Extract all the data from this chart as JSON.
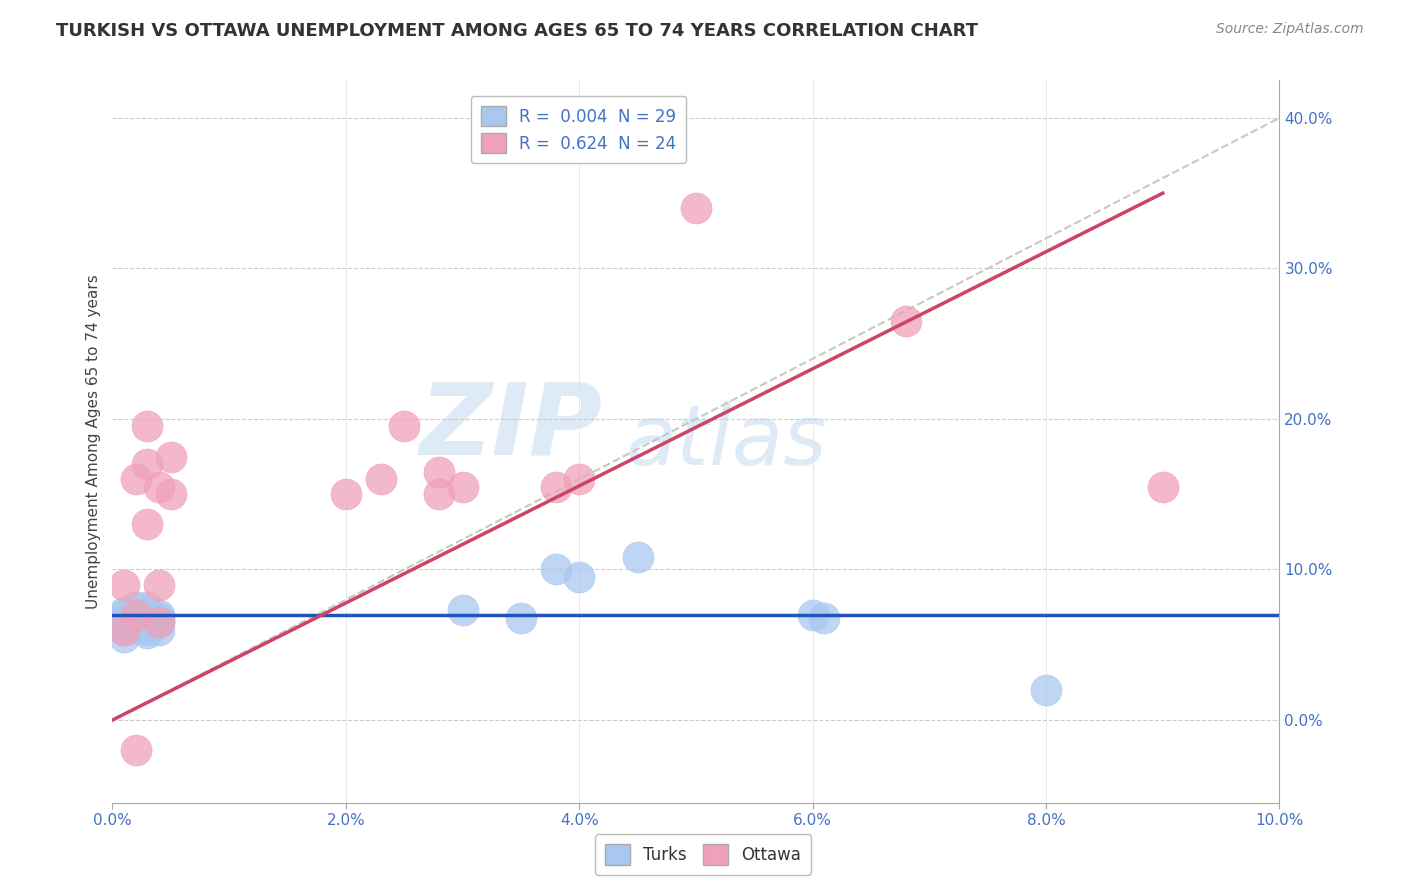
{
  "title": "TURKISH VS OTTAWA UNEMPLOYMENT AMONG AGES 65 TO 74 YEARS CORRELATION CHART",
  "source": "Source: ZipAtlas.com",
  "xlabel": "",
  "ylabel": "Unemployment Among Ages 65 to 74 years",
  "legend_turks": "Turks",
  "legend_ottawa": "Ottawa",
  "turks_R": "0.004",
  "turks_N": "29",
  "ottawa_R": "0.624",
  "ottawa_N": "24",
  "turks_color": "#A8C8F0",
  "ottawa_color": "#F0A0B8",
  "turks_line_color": "#2255BB",
  "ottawa_line_color": "#CC4466",
  "diag_line_color": "#C8C8C8",
  "background_color": "#FFFFFF",
  "watermark_zip": "ZIP",
  "watermark_atlas": "atlas",
  "xlim": [
    0.0,
    0.1
  ],
  "ylim": [
    -0.055,
    0.425
  ],
  "xticks": [
    0.0,
    0.02,
    0.04,
    0.06,
    0.08,
    0.1
  ],
  "yticks_right": [
    0.0,
    0.1,
    0.2,
    0.3,
    0.4
  ],
  "turks_x": [
    0.001,
    0.001,
    0.001,
    0.001,
    0.001,
    0.002,
    0.002,
    0.002,
    0.002,
    0.002,
    0.003,
    0.003,
    0.003,
    0.003,
    0.003,
    0.003,
    0.003,
    0.004,
    0.004,
    0.004,
    0.004,
    0.03,
    0.035,
    0.038,
    0.04,
    0.045,
    0.06,
    0.061,
    0.08
  ],
  "turks_y": [
    0.065,
    0.07,
    0.06,
    0.072,
    0.055,
    0.068,
    0.062,
    0.075,
    0.07,
    0.063,
    0.075,
    0.068,
    0.06,
    0.072,
    0.065,
    0.058,
    0.062,
    0.07,
    0.065,
    0.06,
    0.068,
    0.073,
    0.068,
    0.1,
    0.095,
    0.108,
    0.07,
    0.068,
    0.02
  ],
  "ottawa_x": [
    0.001,
    0.001,
    0.002,
    0.002,
    0.002,
    0.003,
    0.003,
    0.003,
    0.004,
    0.004,
    0.004,
    0.005,
    0.005,
    0.02,
    0.023,
    0.025,
    0.028,
    0.028,
    0.03,
    0.038,
    0.04,
    0.05,
    0.068,
    0.09
  ],
  "ottawa_y": [
    0.06,
    0.09,
    0.07,
    -0.02,
    0.16,
    0.13,
    0.17,
    0.195,
    0.155,
    0.09,
    0.065,
    0.15,
    0.175,
    0.15,
    0.16,
    0.195,
    0.15,
    0.165,
    0.155,
    0.155,
    0.16,
    0.34,
    0.265,
    0.155
  ],
  "turks_line_y0": 0.07,
  "turks_line_y1": 0.07,
  "ottawa_line_x0": 0.0,
  "ottawa_line_y0": 0.0,
  "ottawa_line_x1": 0.09,
  "ottawa_line_y1": 0.35,
  "title_fontsize": 13,
  "source_fontsize": 10,
  "label_fontsize": 11,
  "tick_fontsize": 11,
  "legend_fontsize": 12
}
